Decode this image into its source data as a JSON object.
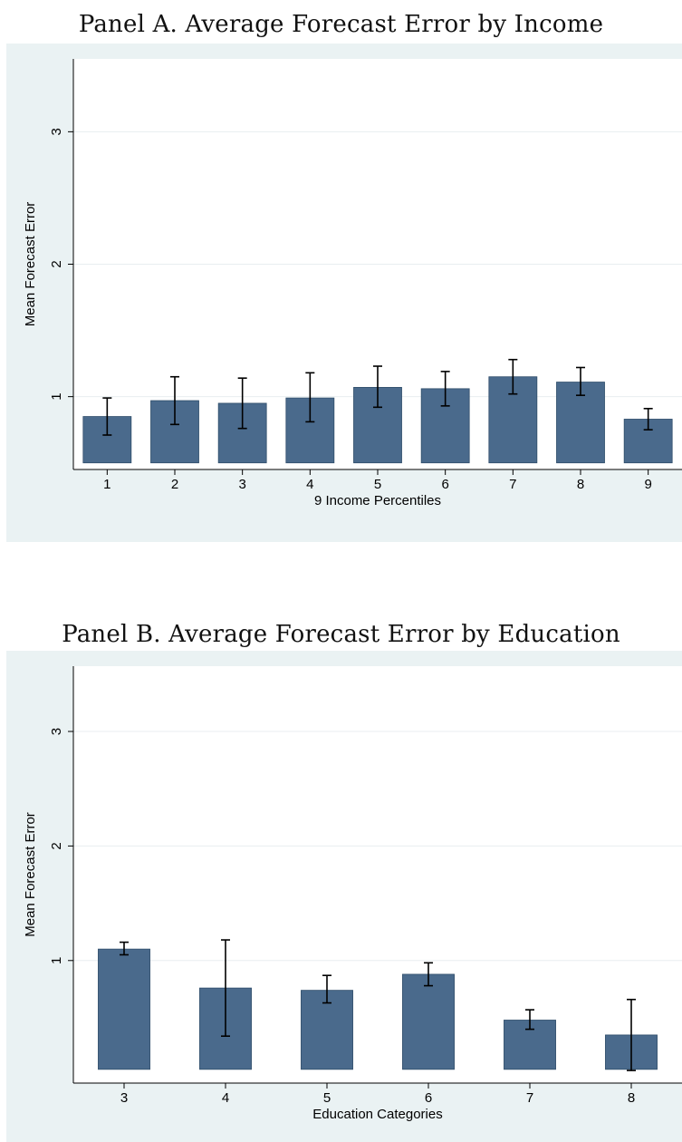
{
  "chart_data": [
    {
      "type": "bar",
      "title": "Panel A. Average Forecast Error by Income",
      "xlabel": "9 Income Percentiles",
      "ylabel": "Mean Forecast Error",
      "categories": [
        "1",
        "2",
        "3",
        "4",
        "5",
        "6",
        "7",
        "8",
        "9"
      ],
      "values": [
        0.85,
        0.97,
        0.95,
        0.99,
        1.07,
        1.06,
        1.15,
        1.11,
        0.83
      ],
      "error_low": [
        0.71,
        0.79,
        0.76,
        0.81,
        0.92,
        0.93,
        1.02,
        1.01,
        0.75
      ],
      "error_high": [
        0.99,
        1.15,
        1.14,
        1.18,
        1.23,
        1.19,
        1.28,
        1.22,
        0.91
      ],
      "bar_base": 0.5,
      "ylim": [
        0.45,
        3.55
      ],
      "yticks": [
        "1",
        "2",
        "3"
      ],
      "grid": true,
      "colors": {
        "bar": "#4a6a8c",
        "plot_bg": "#ffffff",
        "outer_bg": "#eaf2f3",
        "grid": "#e8eef0"
      }
    },
    {
      "type": "bar",
      "title": "Panel B. Average Forecast Error by Education",
      "xlabel": "Education Categories",
      "ylabel": "Mean Forecast Error",
      "categories": [
        "3",
        "4",
        "5",
        "6",
        "7",
        "8"
      ],
      "values": [
        1.1,
        0.76,
        0.74,
        0.88,
        0.48,
        0.35
      ],
      "error_low": [
        1.05,
        0.34,
        0.63,
        0.78,
        0.4,
        0.04
      ],
      "error_high": [
        1.16,
        1.18,
        0.87,
        0.98,
        0.57,
        0.66
      ],
      "bar_base": 0.05,
      "ylim": [
        -0.07,
        3.57
      ],
      "yticks": [
        "1",
        "2",
        "3"
      ],
      "grid": true,
      "colors": {
        "bar": "#4a6a8c",
        "plot_bg": "#ffffff",
        "outer_bg": "#eaf2f3",
        "grid": "#e8eef0"
      }
    }
  ]
}
